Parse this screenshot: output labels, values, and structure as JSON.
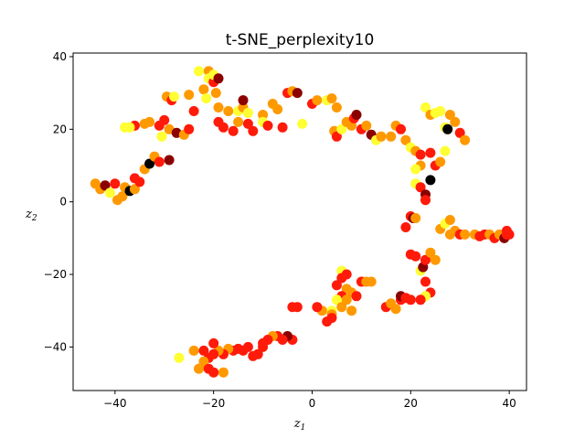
{
  "chart_data": {
    "type": "scatter",
    "title": "t-SNE_perplexity10",
    "xlabel": {
      "base": "z",
      "sub": "1"
    },
    "ylabel": {
      "base": "z",
      "sub": "2"
    },
    "xlim": [
      -48.5,
      43.5
    ],
    "ylim": [
      -52,
      41
    ],
    "xticks": [
      -40,
      -20,
      0,
      20,
      40
    ],
    "yticks": [
      -40,
      -20,
      0,
      20,
      40
    ],
    "grid": false,
    "legend": "none",
    "colors": [
      "#000000",
      "#8b0000",
      "#ff1a0a",
      "#ff9900",
      "#ffff33"
    ],
    "points": [
      [
        -44,
        5,
        3
      ],
      [
        -43,
        3.5,
        3
      ],
      [
        -42,
        4.5,
        1
      ],
      [
        -41,
        2.5,
        4
      ],
      [
        -40,
        5,
        2
      ],
      [
        -39.5,
        0.5,
        3
      ],
      [
        -38.5,
        1.5,
        3
      ],
      [
        -38,
        4,
        3
      ],
      [
        -37,
        3,
        0
      ],
      [
        -36,
        3.5,
        3
      ],
      [
        -36,
        6.5,
        2
      ],
      [
        -35,
        5.5,
        2
      ],
      [
        -34,
        9,
        3
      ],
      [
        -33,
        10.5,
        0
      ],
      [
        -32,
        12.5,
        3
      ],
      [
        -31,
        11,
        2
      ],
      [
        -29,
        11.5,
        1
      ],
      [
        -30.5,
        18,
        4
      ],
      [
        -29,
        20,
        3
      ],
      [
        -31,
        21,
        2
      ],
      [
        -30,
        22.5,
        2
      ],
      [
        -33,
        22,
        3
      ],
      [
        -34,
        21.5,
        3
      ],
      [
        -36,
        21,
        2
      ],
      [
        -38,
        20.5,
        4
      ],
      [
        -37,
        20.5,
        4
      ],
      [
        -29.5,
        29,
        3
      ],
      [
        -28.5,
        28,
        2
      ],
      [
        -28,
        29,
        4
      ],
      [
        -27.5,
        19,
        1
      ],
      [
        -26,
        18.5,
        3
      ],
      [
        -25,
        29.5,
        3
      ],
      [
        -25,
        20,
        2
      ],
      [
        -24,
        25,
        2
      ],
      [
        -23,
        36,
        4
      ],
      [
        -22,
        31,
        3
      ],
      [
        -21.5,
        28.5,
        4
      ],
      [
        -21,
        36,
        3
      ],
      [
        -21,
        34,
        4
      ],
      [
        -20,
        33,
        2
      ],
      [
        -20,
        35,
        4
      ],
      [
        -19.5,
        30,
        3
      ],
      [
        -19,
        34,
        1
      ],
      [
        -19,
        26,
        3
      ],
      [
        -19,
        22,
        2
      ],
      [
        -18,
        20.5,
        2
      ],
      [
        -17,
        25,
        3
      ],
      [
        -16,
        19.5,
        2
      ],
      [
        -15,
        22,
        3
      ],
      [
        -15,
        25,
        4
      ],
      [
        -14,
        26,
        3
      ],
      [
        -14,
        28,
        1
      ],
      [
        -13,
        21.5,
        2
      ],
      [
        -13,
        24.5,
        4
      ],
      [
        -12,
        19.5,
        2
      ],
      [
        -10,
        24,
        3
      ],
      [
        -10,
        22,
        4
      ],
      [
        -9,
        21,
        2
      ],
      [
        -8,
        27,
        3
      ],
      [
        -7,
        25.5,
        3
      ],
      [
        -6,
        20.5,
        2
      ],
      [
        -5,
        30,
        2
      ],
      [
        -4,
        30.5,
        3
      ],
      [
        -3,
        30,
        1
      ],
      [
        -2,
        21.5,
        4
      ],
      [
        0,
        27,
        2
      ],
      [
        1,
        28,
        3
      ],
      [
        3,
        28,
        4
      ],
      [
        4,
        28.5,
        3
      ],
      [
        5,
        26,
        3
      ],
      [
        4.5,
        19.5,
        3
      ],
      [
        5,
        18,
        2
      ],
      [
        6,
        20,
        4
      ],
      [
        7,
        22,
        3
      ],
      [
        8,
        21,
        3
      ],
      [
        8.5,
        23,
        2
      ],
      [
        9,
        24,
        1
      ],
      [
        10,
        20,
        2
      ],
      [
        11,
        21,
        3
      ],
      [
        12,
        18.5,
        1
      ],
      [
        13,
        17,
        4
      ],
      [
        14,
        18,
        3
      ],
      [
        16,
        18,
        3
      ],
      [
        17,
        21,
        3
      ],
      [
        18,
        20,
        2
      ],
      [
        19,
        17,
        3
      ],
      [
        20,
        15,
        4
      ],
      [
        21,
        14,
        3
      ],
      [
        22,
        13,
        2
      ],
      [
        22,
        10,
        3
      ],
      [
        21,
        9,
        4
      ],
      [
        21,
        5,
        4
      ],
      [
        22,
        4,
        2
      ],
      [
        23,
        2,
        1
      ],
      [
        23,
        0.5,
        2
      ],
      [
        24,
        6,
        0
      ],
      [
        24,
        13.5,
        2
      ],
      [
        25,
        10,
        2
      ],
      [
        26,
        11,
        3
      ],
      [
        27,
        14,
        4
      ],
      [
        23,
        26,
        4
      ],
      [
        24,
        24,
        3
      ],
      [
        25,
        24.5,
        4
      ],
      [
        26,
        25,
        4
      ],
      [
        27,
        20.5,
        4
      ],
      [
        27.5,
        20,
        0
      ],
      [
        28,
        24,
        3
      ],
      [
        29,
        22,
        3
      ],
      [
        30,
        19,
        2
      ],
      [
        31,
        17,
        3
      ],
      [
        19,
        -7,
        2
      ],
      [
        20,
        -4,
        2
      ],
      [
        20.5,
        -4.5,
        1
      ],
      [
        21,
        -4.5,
        3
      ],
      [
        20,
        -14.5,
        2
      ],
      [
        21,
        -15,
        2
      ],
      [
        22,
        -19,
        4
      ],
      [
        22.5,
        -18,
        1
      ],
      [
        23,
        -16,
        2
      ],
      [
        24,
        -14,
        3
      ],
      [
        25,
        -16,
        3
      ],
      [
        23,
        -22,
        2
      ],
      [
        24,
        -25,
        2
      ],
      [
        23,
        -26,
        4
      ],
      [
        22,
        -27,
        2
      ],
      [
        26,
        -7.5,
        3
      ],
      [
        27,
        -6,
        4
      ],
      [
        28,
        -5,
        3
      ],
      [
        28,
        -9,
        3
      ],
      [
        29,
        -8,
        3
      ],
      [
        30,
        -9,
        2
      ],
      [
        31,
        -9,
        3
      ],
      [
        33,
        -9,
        3
      ],
      [
        34,
        -9.5,
        2
      ],
      [
        35,
        -9,
        2
      ],
      [
        36,
        -9,
        3
      ],
      [
        37,
        -10,
        2
      ],
      [
        38,
        -9,
        3
      ],
      [
        39,
        -10,
        1
      ],
      [
        39.5,
        -9,
        2
      ],
      [
        40,
        -9,
        2
      ],
      [
        39.5,
        -8,
        2
      ],
      [
        6,
        -19,
        4
      ],
      [
        6,
        -21,
        2
      ],
      [
        7,
        -20,
        2
      ],
      [
        5,
        -23,
        2
      ],
      [
        7,
        -24,
        3
      ],
      [
        6,
        -26,
        2
      ],
      [
        5,
        -27,
        4
      ],
      [
        6,
        -28,
        4
      ],
      [
        4,
        -30,
        4
      ],
      [
        4,
        -31,
        3
      ],
      [
        4,
        -32,
        2
      ],
      [
        3,
        -33,
        2
      ],
      [
        2,
        -30,
        3
      ],
      [
        1,
        -29,
        2
      ],
      [
        6,
        -29,
        3
      ],
      [
        7,
        -27,
        3
      ],
      [
        8,
        -25,
        3
      ],
      [
        8,
        -30,
        3
      ],
      [
        9,
        -26,
        2
      ],
      [
        10,
        -22,
        2
      ],
      [
        11,
        -22,
        3
      ],
      [
        12,
        -22,
        3
      ],
      [
        15,
        -29,
        2
      ],
      [
        16,
        -28,
        3
      ],
      [
        17,
        -29.5,
        3
      ],
      [
        18,
        -27,
        2
      ],
      [
        18,
        -26,
        1
      ],
      [
        19,
        -26.5,
        2
      ],
      [
        20,
        -27,
        2
      ],
      [
        -4,
        -29,
        2
      ],
      [
        -3,
        -29,
        2
      ],
      [
        -4,
        -38,
        2
      ],
      [
        -5,
        -37,
        1
      ],
      [
        -6,
        -38,
        2
      ],
      [
        -7,
        -37,
        2
      ],
      [
        -8,
        -37,
        3
      ],
      [
        -9,
        -38,
        2
      ],
      [
        -10,
        -39,
        2
      ],
      [
        -10,
        -40,
        2
      ],
      [
        -11,
        -42,
        2
      ],
      [
        -12,
        -42.5,
        2
      ],
      [
        -13,
        -40,
        2
      ],
      [
        -14,
        -41,
        2
      ],
      [
        -15,
        -40.5,
        2
      ],
      [
        -16,
        -41,
        2
      ],
      [
        -17,
        -40.5,
        3
      ],
      [
        -18,
        -42,
        2
      ],
      [
        -19,
        -41,
        3
      ],
      [
        -20,
        -39,
        2
      ],
      [
        -20,
        -42,
        2
      ],
      [
        -21,
        -43,
        2
      ],
      [
        -22,
        -41,
        2
      ],
      [
        -22,
        -44,
        3
      ],
      [
        -22,
        -45,
        3
      ],
      [
        -23,
        -46,
        3
      ],
      [
        -21,
        -46,
        2
      ],
      [
        -20,
        -47,
        2
      ],
      [
        -18,
        -47,
        3
      ],
      [
        -24,
        -41,
        3
      ],
      [
        -27,
        -43,
        4
      ]
    ]
  }
}
